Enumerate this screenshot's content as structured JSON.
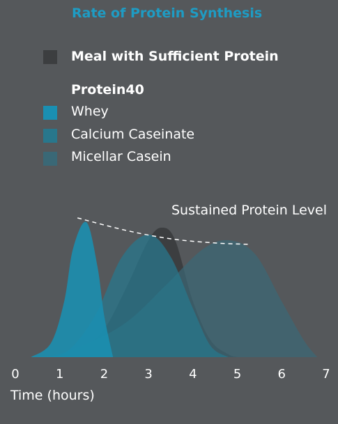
{
  "chart_data": {
    "type": "area",
    "title": "Rate of Protein Synthesis",
    "xlabel": "Time (hours)",
    "ylabel": "",
    "x_ticks": [
      "0",
      "1",
      "2",
      "3",
      "4",
      "5",
      "6",
      "7"
    ],
    "xlim": [
      0,
      7
    ],
    "ylim": [
      0,
      1
    ],
    "grid": false,
    "legend_position": "top-left",
    "annotation": "Sustained Protein Level",
    "legend": {
      "meal_label": "Meal with Sufficient Protein",
      "group_label": "Protein40",
      "items": [
        "Whey",
        "Calcium Caseinate",
        "Micellar Casein"
      ]
    },
    "series": [
      {
        "name": "Meal with Sufficient Protein",
        "color": "#3c3e40",
        "points": [
          [
            1.0,
            0.0
          ],
          [
            1.5,
            0.06
          ],
          [
            2.0,
            0.2
          ],
          [
            2.5,
            0.5
          ],
          [
            3.0,
            0.84
          ],
          [
            3.3,
            0.93
          ],
          [
            3.6,
            0.84
          ],
          [
            4.0,
            0.4
          ],
          [
            4.4,
            0.12
          ],
          [
            4.8,
            0.02
          ],
          [
            5.0,
            0.0
          ]
        ]
      },
      {
        "name": "Whey",
        "color": "#1a8fb2",
        "points": [
          [
            0.35,
            0.0
          ],
          [
            0.8,
            0.1
          ],
          [
            1.1,
            0.4
          ],
          [
            1.3,
            0.78
          ],
          [
            1.6,
            0.97
          ],
          [
            1.85,
            0.65
          ],
          [
            2.0,
            0.3
          ],
          [
            2.2,
            0.0
          ]
        ]
      },
      {
        "name": "Calcium Caseinate",
        "color": "#28778c",
        "points": [
          [
            0.7,
            0.0
          ],
          [
            1.2,
            0.05
          ],
          [
            1.8,
            0.3
          ],
          [
            2.4,
            0.72
          ],
          [
            3.0,
            0.88
          ],
          [
            3.5,
            0.72
          ],
          [
            4.0,
            0.35
          ],
          [
            4.4,
            0.08
          ],
          [
            4.8,
            0.0
          ]
        ]
      },
      {
        "name": "Micellar Casein",
        "color": "#3a6876",
        "points": [
          [
            0.7,
            0.0
          ],
          [
            1.5,
            0.08
          ],
          [
            2.5,
            0.25
          ],
          [
            3.4,
            0.52
          ],
          [
            4.2,
            0.77
          ],
          [
            4.8,
            0.84
          ],
          [
            5.4,
            0.74
          ],
          [
            6.0,
            0.4
          ],
          [
            6.5,
            0.12
          ],
          [
            6.8,
            0.0
          ]
        ]
      }
    ],
    "sustained_level_line": [
      [
        1.4,
        1.0
      ],
      [
        2.5,
        0.91
      ],
      [
        3.5,
        0.85
      ],
      [
        4.5,
        0.82
      ],
      [
        5.3,
        0.81
      ]
    ]
  }
}
